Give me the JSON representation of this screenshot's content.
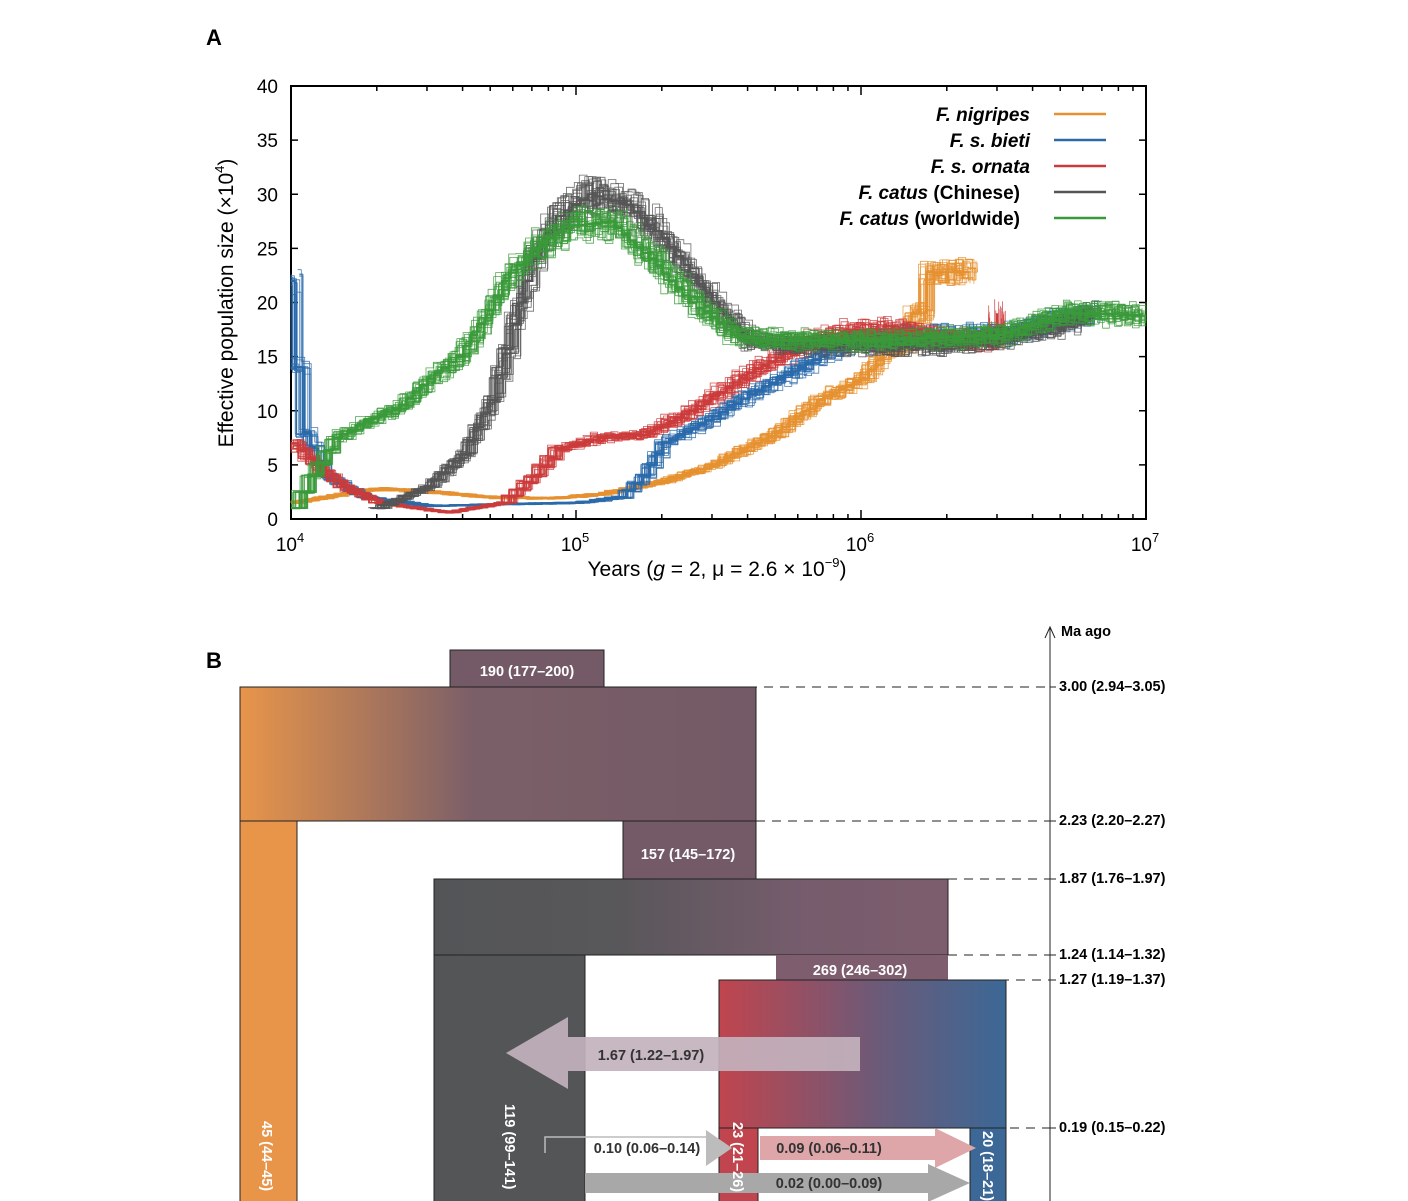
{
  "panel_a": {
    "letter": "A",
    "chart_data": {
      "type": "line",
      "title": "",
      "xlabel": "Years (g = 2, μ = 2.6 × 10⁻⁹)",
      "ylabel": "Effective population size (×10⁴)",
      "x_scale": "log",
      "xlim": [
        10000,
        10000000
      ],
      "ylim": [
        0,
        40
      ],
      "x_ticks": [
        "10",
        "10",
        "10",
        "10"
      ],
      "x_tick_exponents": [
        "4",
        "5",
        "6",
        "7"
      ],
      "y_ticks": [
        "0",
        "5",
        "10",
        "15",
        "20",
        "25",
        "30",
        "35",
        "40"
      ],
      "legend_placement": "top-right",
      "series": [
        {
          "name": "F. nigripes",
          "name_suffix": "",
          "color": "#e6912f",
          "points": [
            [
              10000,
              1.5
            ],
            [
              15000,
              2.3
            ],
            [
              20000,
              2.8
            ],
            [
              30000,
              2.5
            ],
            [
              50000,
              2.0
            ],
            [
              80000,
              1.9
            ],
            [
              120000,
              2.3
            ],
            [
              200000,
              3.5
            ],
            [
              300000,
              5.0
            ],
            [
              500000,
              8.0
            ],
            [
              700000,
              11
            ],
            [
              1000000,
              13
            ],
            [
              1200000,
              15.5
            ],
            [
              1400000,
              16
            ],
            [
              1500000,
              19
            ],
            [
              1700000,
              19
            ],
            [
              1700000,
              22.8
            ],
            [
              2400000,
              22.8
            ]
          ]
        },
        {
          "name": "F. s. bieti",
          "name_suffix": "",
          "color": "#2a6aaa",
          "points": [
            [
              10000,
              22
            ],
            [
              10300,
              14
            ],
            [
              11000,
              8
            ],
            [
              13000,
              4
            ],
            [
              18000,
              2.0
            ],
            [
              30000,
              1.2
            ],
            [
              60000,
              1.4
            ],
            [
              100000,
              1.5
            ],
            [
              140000,
              2.0
            ],
            [
              170000,
              4.0
            ],
            [
              200000,
              7.0
            ],
            [
              300000,
              9.5
            ],
            [
              400000,
              11.5
            ],
            [
              600000,
              14
            ],
            [
              900000,
              16.5
            ],
            [
              1500000,
              17
            ],
            [
              3000000,
              17
            ],
            [
              5000000,
              18.5
            ],
            [
              6500000,
              19
            ]
          ]
        },
        {
          "name": "F. s. ornata",
          "name_suffix": "",
          "color": "#cc3b3b",
          "points": [
            [
              10000,
              7
            ],
            [
              12000,
              5
            ],
            [
              15000,
              3
            ],
            [
              20000,
              1.5
            ],
            [
              35000,
              0.6
            ],
            [
              55000,
              1.5
            ],
            [
              70000,
              4.0
            ],
            [
              85000,
              6.5
            ],
            [
              120000,
              7.5
            ],
            [
              170000,
              7.8
            ],
            [
              250000,
              10
            ],
            [
              400000,
              13.5
            ],
            [
              600000,
              16
            ],
            [
              900000,
              17.5
            ],
            [
              1300000,
              17.5
            ],
            [
              2000000,
              16.5
            ],
            [
              3000000,
              16.5
            ],
            [
              3000000,
              19
            ]
          ]
        },
        {
          "name": "F. catus",
          "name_suffix": "(Chinese)",
          "color": "#555555",
          "points": [
            [
              20000,
              1.0
            ],
            [
              30000,
              3.0
            ],
            [
              40000,
              6.0
            ],
            [
              50000,
              11
            ],
            [
              60000,
              18
            ],
            [
              70000,
              24
            ],
            [
              85000,
              28
            ],
            [
              110000,
              30
            ],
            [
              150000,
              29
            ],
            [
              200000,
              26
            ],
            [
              300000,
              20
            ],
            [
              400000,
              16.5
            ],
            [
              700000,
              16
            ],
            [
              1000000,
              16
            ],
            [
              2000000,
              16
            ],
            [
              3500000,
              17
            ],
            [
              5000000,
              18
            ],
            [
              6500000,
              19
            ]
          ]
        },
        {
          "name": "F. catus",
          "name_suffix": "(worldwide)",
          "color": "#3a9a3a",
          "points": [
            [
              10000,
              1.0
            ],
            [
              11500,
              4.0
            ],
            [
              14000,
              7.5
            ],
            [
              18000,
              9.0
            ],
            [
              24000,
              10.5
            ],
            [
              30000,
              13
            ],
            [
              38000,
              15
            ],
            [
              45000,
              18
            ],
            [
              55000,
              22
            ],
            [
              70000,
              25
            ],
            [
              90000,
              27
            ],
            [
              130000,
              27.5
            ],
            [
              180000,
              24
            ],
            [
              250000,
              20
            ],
            [
              350000,
              17
            ],
            [
              500000,
              16.5
            ],
            [
              1000000,
              16.5
            ],
            [
              3000000,
              17
            ],
            [
              5000000,
              19
            ],
            [
              6500000,
              19
            ],
            [
              9500000,
              18.8
            ]
          ]
        }
      ]
    }
  },
  "panel_b": {
    "letter": "B",
    "time_axis_label": "Ma ago",
    "time_marks": [
      {
        "ma": 3.0,
        "label": "3.00 (2.94–3.05)"
      },
      {
        "ma": 2.23,
        "label": "2.23 (2.20–2.27)"
      },
      {
        "ma": 1.87,
        "label": "1.87 (1.76–1.97)"
      },
      {
        "ma": 1.24,
        "label": "1.24 (1.14–1.32)"
      },
      {
        "ma": 1.27,
        "label": "1.27 (1.19–1.37)"
      },
      {
        "ma": 0.19,
        "label": "0.19 (0.15–0.22)"
      }
    ],
    "population_sizes": {
      "ancestral_root": "190 (177–200)",
      "ancestor_catus_silvestris": "157 (145–172)",
      "ancestor_bieti_ornata": "269 (246–302)",
      "nigripes": "45 (44–45)",
      "catus": "119 (99–141)",
      "ornata": "23 (21–26)",
      "bieti": "20 (18–21)"
    },
    "migrations": {
      "ancestral_to_catus": "1.67 (1.22–1.97)",
      "catus_to_ornata": "0.10 (0.06–0.14)",
      "ornata_to_bieti": "0.09 (0.06–0.11)",
      "catus_to_bieti": "0.02 (0.00–0.09)"
    },
    "colors": {
      "nigripes": "#e8954a",
      "ancestral": "#735a66",
      "catus": "#545557",
      "ornata": "#c0454e",
      "bieti": "#3b6896",
      "mig_ancestral": "#c3b2bd",
      "mig_ornata_bieti": "#dea6a9",
      "mig_catus": "#a8a8a8"
    }
  }
}
